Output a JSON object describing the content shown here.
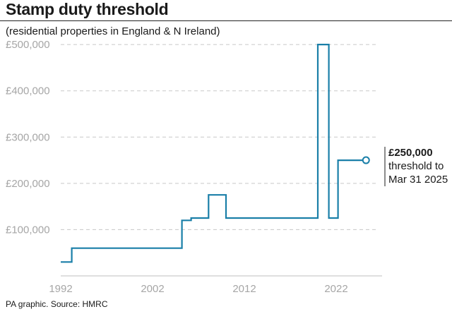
{
  "header": {
    "title": "Stamp duty threshold",
    "subtitle": "(residential properties in England & N Ireland)"
  },
  "footer": {
    "source": "PA graphic. Source: HMRC"
  },
  "colors": {
    "line": "#1a7fa8",
    "grid": "#c8c8c8",
    "tick_text": "#a6a6a6",
    "axis": "#bfbfbf"
  },
  "chart_data": {
    "type": "line",
    "step": true,
    "title": "Stamp duty threshold",
    "subtitle": "(residential properties in England & N Ireland)",
    "xlabel": "",
    "ylabel": "",
    "xlim": [
      1992,
      2027
    ],
    "ylim": [
      0,
      520000
    ],
    "y_ticks": [
      100000,
      200000,
      300000,
      400000,
      500000
    ],
    "y_tick_labels": [
      "£100,000",
      "£200,000",
      "£300,000",
      "£400,000",
      "£500,000"
    ],
    "x_ticks": [
      1992,
      2002,
      2012,
      2022
    ],
    "x_tick_labels": [
      "1992",
      "2002",
      "2012",
      "2022"
    ],
    "grid": "horizontal dashed",
    "series": [
      {
        "points": [
          [
            1992.0,
            30000
          ],
          [
            1993.2,
            30000
          ],
          [
            1993.2,
            60000
          ],
          [
            2005.2,
            60000
          ],
          [
            2005.2,
            120000
          ],
          [
            2006.2,
            120000
          ],
          [
            2006.2,
            125000
          ],
          [
            2008.1,
            125000
          ],
          [
            2008.1,
            175000
          ],
          [
            2010.0,
            175000
          ],
          [
            2010.0,
            125000
          ],
          [
            2020.0,
            125000
          ],
          [
            2020.0,
            500000
          ],
          [
            2021.2,
            500000
          ],
          [
            2021.2,
            125000
          ],
          [
            2022.2,
            125000
          ],
          [
            2022.2,
            250000
          ],
          [
            2025.25,
            250000
          ]
        ]
      }
    ],
    "annotation": {
      "value_label": "£250,000",
      "lines": [
        "threshold to",
        "Mar 31 2025"
      ],
      "x": 2025.25,
      "y": 250000
    }
  }
}
